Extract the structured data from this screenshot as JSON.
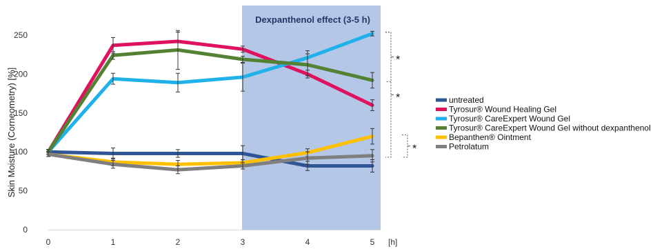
{
  "chart_data": {
    "type": "line",
    "title": "",
    "ylabel": "Skin Moisture (Corneometry) [%]",
    "xlabel": "[h]",
    "x": [
      0,
      1,
      2,
      3,
      4,
      5
    ],
    "xlim": [
      0,
      5
    ],
    "ylim": [
      0,
      260
    ],
    "y_ticks": [
      0,
      50,
      100,
      150,
      200,
      250
    ],
    "grid": false,
    "legend_position": "right",
    "highlight_region": {
      "label": "Dexpanthenol effect (3-5 h)",
      "x_start": 3,
      "x_end": 5,
      "color": "#b4c7e7"
    },
    "series": [
      {
        "name": "untreated",
        "color": "#2f5597",
        "values": [
          100,
          98,
          98,
          98,
          82,
          82
        ],
        "errors": [
          3,
          7,
          5,
          10,
          6,
          8
        ]
      },
      {
        "name": "Tyrosur® Wound Healing Gel",
        "color": "#e0115f",
        "values": [
          100,
          237,
          242,
          232,
          200,
          160
        ],
        "errors": [
          3,
          10,
          12,
          4,
          5,
          7
        ]
      },
      {
        "name": "Tyrosur® CareExpert Wound Gel",
        "color": "#1fb1ea",
        "values": [
          100,
          194,
          189,
          196,
          221,
          252
        ],
        "errors": [
          3,
          7,
          12,
          18,
          9,
          3
        ]
      },
      {
        "name": "Tyrosur® CareExpert Wound Gel without dexpanthenol",
        "color": "#548235",
        "values": [
          100,
          224,
          231,
          219,
          212,
          192
        ],
        "errors": [
          3,
          5,
          25,
          4,
          14,
          10
        ]
      },
      {
        "name": "Bepanthen® Ointment",
        "color": "#ffc000",
        "values": [
          97,
          87,
          84,
          86,
          99,
          120
        ],
        "errors": [
          3,
          5,
          5,
          4,
          5,
          10
        ]
      },
      {
        "name": "Petrolatum",
        "color": "#7f7f7f",
        "values": [
          97,
          84,
          77,
          82,
          92,
          95
        ],
        "errors": [
          3,
          5,
          5,
          4,
          8,
          8
        ]
      }
    ],
    "significance": [
      {
        "label": "*",
        "between": [
          "Tyrosur® Wound Healing Gel",
          "Tyrosur® CareExpert Wound Gel"
        ],
        "y_range": [
          192,
          252
        ]
      },
      {
        "label": "*",
        "between": [
          "Bepanthen® Ointment",
          "Petrolatum"
        ],
        "y_range": [
          95,
          120
        ]
      },
      {
        "label": "*",
        "between": [
          "Tyrosur® CareExpert Wound Gel",
          "Bepanthen® Ointment"
        ],
        "y_range": [
          95,
          252
        ]
      }
    ]
  }
}
